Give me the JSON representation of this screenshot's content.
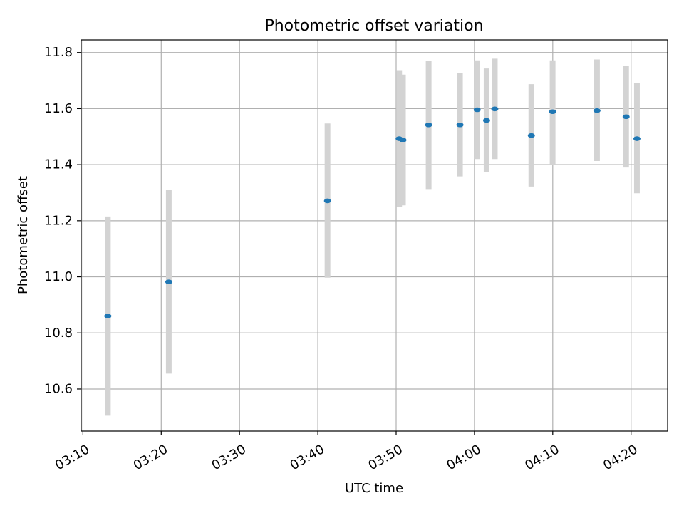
{
  "chart_data": {
    "type": "scatter",
    "title": "Photometric offset variation",
    "xlabel": "UTC time",
    "ylabel": "Photometric offset",
    "x_tick_labels": [
      "03:10",
      "03:20",
      "03:30",
      "03:40",
      "03:50",
      "04:00",
      "04:10",
      "04:20"
    ],
    "y_tick_labels": [
      "10.6",
      "10.8",
      "11.0",
      "11.2",
      "11.4",
      "11.6",
      "11.8"
    ],
    "x_ticks": [
      "03:10",
      "03:20",
      "03:30",
      "03:40",
      "03:50",
      "04:00",
      "04:10",
      "04:20"
    ],
    "y_ticks": [
      10.6,
      10.8,
      11.0,
      11.2,
      11.4,
      11.6,
      11.8
    ],
    "xlim": [
      "03:09:47",
      "04:24:40"
    ],
    "ylim": [
      10.45,
      11.845
    ],
    "grid": true,
    "colors": {
      "marker": "#1f77b4",
      "errorbar": "#d3d3d3",
      "grid": "#b0b0b0",
      "frame": "#000000"
    },
    "series": [
      {
        "points": [
          {
            "x": "03:13:11",
            "y": 10.86,
            "ylow": 10.505,
            "yhigh": 11.215
          },
          {
            "x": "03:20:58",
            "y": 10.982,
            "ylow": 10.655,
            "yhigh": 11.31
          },
          {
            "x": "03:41:14",
            "y": 11.271,
            "ylow": 10.997,
            "yhigh": 11.547
          },
          {
            "x": "03:50:23",
            "y": 11.493,
            "ylow": 11.25,
            "yhigh": 11.737
          },
          {
            "x": "03:50:52",
            "y": 11.488,
            "ylow": 11.255,
            "yhigh": 11.721
          },
          {
            "x": "03:54:09",
            "y": 11.542,
            "ylow": 11.313,
            "yhigh": 11.771
          },
          {
            "x": "03:58:09",
            "y": 11.542,
            "ylow": 11.358,
            "yhigh": 11.726
          },
          {
            "x": "04:00:21",
            "y": 11.596,
            "ylow": 11.42,
            "yhigh": 11.772
          },
          {
            "x": "04:01:33",
            "y": 11.558,
            "ylow": 11.373,
            "yhigh": 11.743
          },
          {
            "x": "04:02:36",
            "y": 11.599,
            "ylow": 11.42,
            "yhigh": 11.778
          },
          {
            "x": "04:07:16",
            "y": 11.504,
            "ylow": 11.322,
            "yhigh": 11.687
          },
          {
            "x": "04:09:59",
            "y": 11.589,
            "ylow": 11.4,
            "yhigh": 11.772
          },
          {
            "x": "04:15:39",
            "y": 11.593,
            "ylow": 11.413,
            "yhigh": 11.775
          },
          {
            "x": "04:19:22",
            "y": 11.571,
            "ylow": 11.39,
            "yhigh": 11.752
          },
          {
            "x": "04:20:45",
            "y": 11.493,
            "ylow": 11.298,
            "yhigh": 11.69
          }
        ]
      }
    ]
  }
}
